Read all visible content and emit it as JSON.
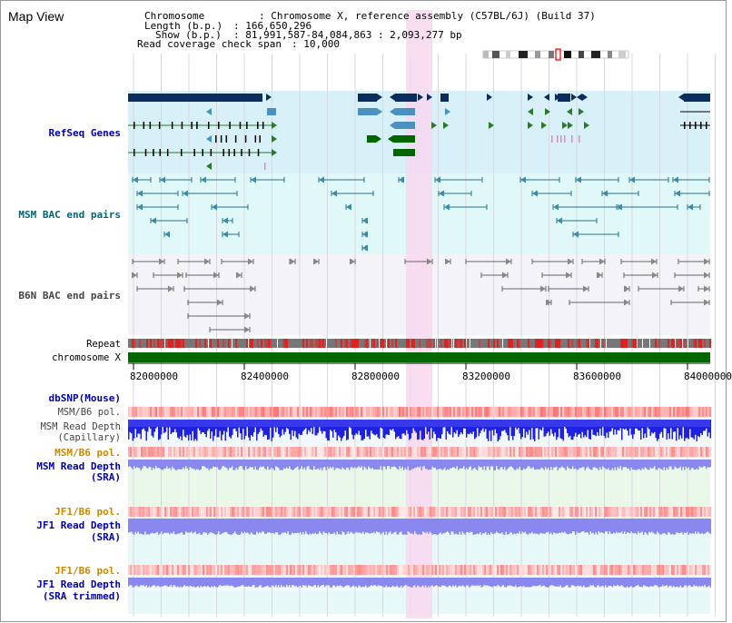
{
  "window": {
    "title": "Map View"
  },
  "info": {
    "chromosome_key": "Chromosome",
    "chromosome_val": ": Chromosome X, reference assembly (C57BL/6J) (Build 37)",
    "length_key": "Length (b.p.)",
    "length_val": ": 166,650,296",
    "show_key": "Show (b.p.)",
    "show_val": ": 81,991,587-84,084,863 : 2,093,277 bp",
    "coverage_key": "Read coverage check span",
    "coverage_val": ": 10,000"
  },
  "tracks": {
    "refseq": "RefSeq Genes",
    "msm_bac": "MSM BAC end pairs",
    "b6n_bac": "B6N BAC end pairs",
    "repeat": "Repeat",
    "chromosome": "chromosome X",
    "dbsnp": "dbSNP(Mouse)",
    "msm_b6_pol_1": "MSM/B6 pol.",
    "msm_read_depth_cap_1": "MSM Read Depth",
    "msm_read_depth_cap_2": "(Capillary)",
    "msm_b6_pol_2": "MSM/B6 pol.",
    "msm_read_depth_sra_1": "MSM Read Depth",
    "msm_read_depth_sra_2": "(SRA)",
    "jf1_b6_pol_1": "JF1/B6 pol.",
    "jf1_read_depth_sra_1": "JF1 Read Depth",
    "jf1_read_depth_sra_2": "(SRA)",
    "jf1_b6_pol_2": "JF1/B6 pol.",
    "jf1_read_depth_trim_1": "JF1 Read Depth",
    "jf1_read_depth_trim_2": "(SRA trimmed)"
  },
  "axis": {
    "ticks": [
      "82000000",
      "82400000",
      "82800000",
      "83200000",
      "83600000",
      "84000000"
    ]
  },
  "colors": {
    "gene_dark": "#0b2d5e",
    "gene_mid": "#4a90c0",
    "gene_green": "#006600",
    "refseq_bg": "#d8f0f8",
    "msm_bg": "#e0f8f8",
    "b6n_bg": "#f4f4f8",
    "highlight": "#f8d8f0",
    "label_blue": "#0000aa",
    "label_teal": "#006677",
    "label_orange": "#cc8800",
    "label_gray": "#444444"
  },
  "icons": [
    "chromosome-ideogram-icon"
  ]
}
